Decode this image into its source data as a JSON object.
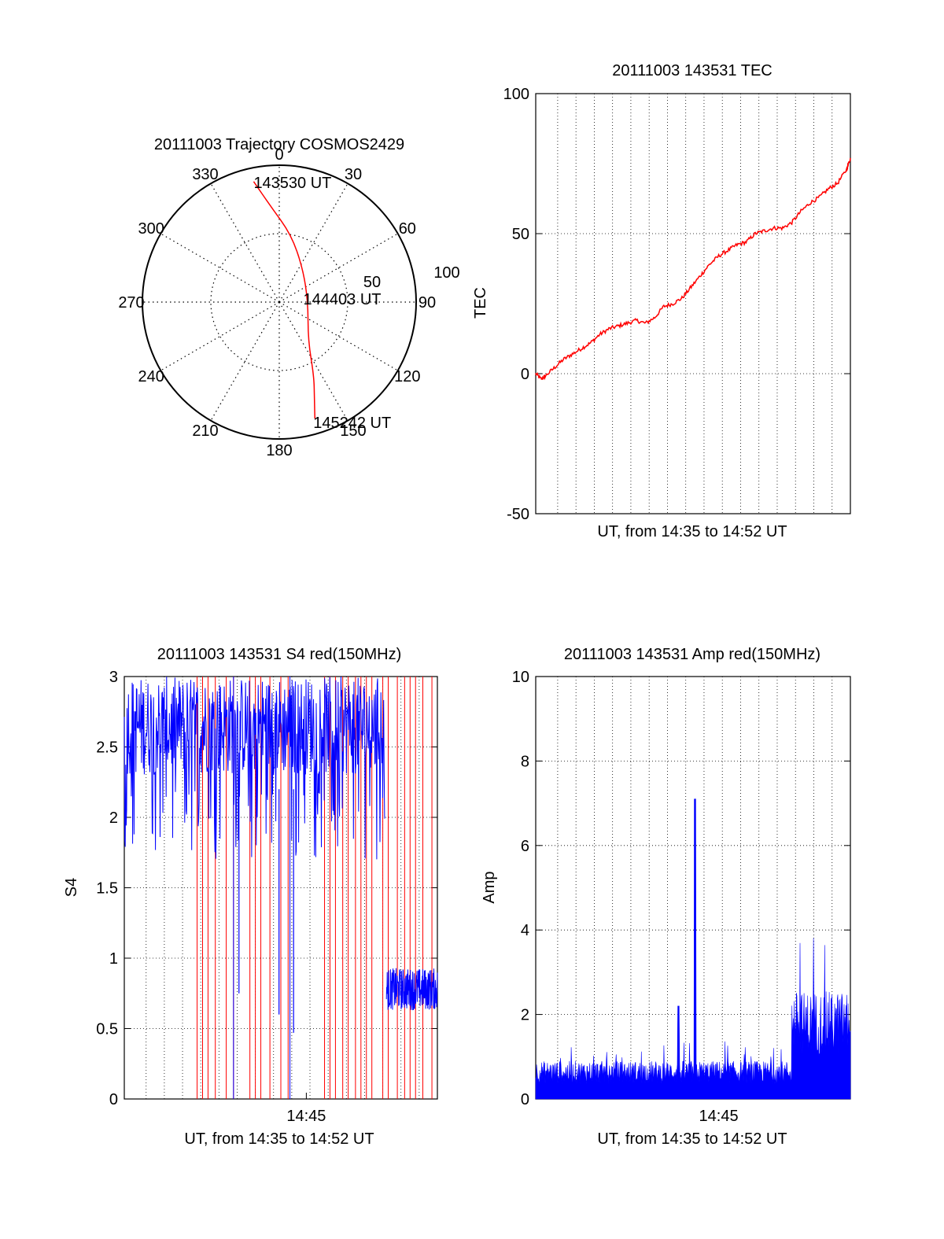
{
  "colors": {
    "red_trace": "#ff0000",
    "blue_trace": "#0000ff",
    "axis": "#000000",
    "grid": "#000000"
  },
  "chart_data": [
    {
      "type": "polar",
      "title": "20111003 Trajectory COSMOS2429",
      "azimuth_labels": [
        "0",
        "30",
        "60",
        "90",
        "120",
        "150",
        "180",
        "210",
        "240",
        "270",
        "300",
        "330"
      ],
      "radial_labels": [
        "50",
        "100"
      ],
      "radial_range": [
        0,
        100
      ],
      "grid": true,
      "trajectory": {
        "name": "",
        "points": [
          {
            "az": 348,
            "r": 90
          },
          {
            "az": 355,
            "r": 70
          },
          {
            "az": 10,
            "r": 50
          },
          {
            "az": 35,
            "r": 30
          },
          {
            "az": 90,
            "r": 21
          },
          {
            "az": 143,
            "r": 35
          },
          {
            "az": 155,
            "r": 60
          },
          {
            "az": 160,
            "r": 75
          },
          {
            "az": 163,
            "r": 89
          }
        ]
      },
      "time_labels": [
        {
          "text": "143530 UT",
          "az": 348,
          "r": 90
        },
        {
          "text": "144403 UT",
          "az": 90,
          "r": 21
        },
        {
          "text": "145242 UT",
          "az": 163,
          "r": 89
        }
      ]
    },
    {
      "type": "line",
      "title": "20111003 143531 TEC",
      "xlabel": "UT, from 14:35 to 14:52 UT",
      "ylabel": "TEC",
      "xlim": [
        0,
        17.2
      ],
      "ylim": [
        -50,
        100
      ],
      "y_ticks": [
        "100",
        "50",
        "0",
        "-50"
      ],
      "grid": true,
      "series": [
        {
          "name": "",
          "x": [
            0,
            0.3,
            0.5,
            1,
            1.5,
            2,
            2.5,
            3,
            3.5,
            4,
            4.5,
            5,
            5.5,
            6,
            6.5,
            7,
            7.5,
            8,
            8.5,
            9,
            9.5,
            10,
            10.5,
            11,
            11.5,
            12,
            12.5,
            13,
            13.5,
            14,
            14.5,
            15,
            15.5,
            16,
            16.5,
            17,
            17.2
          ],
          "values": [
            0,
            -2,
            -1,
            2,
            5,
            7,
            9,
            11,
            14,
            16,
            17,
            18,
            19,
            18,
            20,
            24,
            25,
            27,
            31,
            35,
            39,
            42,
            44,
            46,
            47,
            50,
            51,
            52,
            52,
            54,
            58,
            61,
            63,
            66,
            68,
            73,
            77
          ]
        }
      ]
    },
    {
      "type": "line",
      "title": "20111003 143531 S4 red(150MHz)",
      "xlabel": "UT, from 14:35 to 14:52 UT",
      "ylabel": "S4",
      "xlim": [
        0,
        17.2
      ],
      "ylim": [
        0,
        3
      ],
      "y_ticks": [
        "3",
        "2.5",
        "2",
        "1.5",
        "1",
        "0.5",
        "0"
      ],
      "x_ticks": [
        {
          "x": 10,
          "label": "14:45"
        }
      ],
      "grid": true,
      "series": [
        {
          "name": "",
          "color": "red",
          "note_none": ""
        },
        {
          "name": "",
          "color": "blue"
        }
      ],
      "description_levels": {
        "blue_dip_positions": [
          6.3,
          8.5,
          9.3
        ],
        "blue_dip_values": [
          0.75,
          0.6,
          0.47
        ],
        "blue_tail_range": [
          14.4,
          17.2
        ],
        "blue_tail_mean": 0.78
      }
    },
    {
      "type": "line",
      "title": "20111003 143531 Amp red(150MHz)",
      "xlabel": "UT, from 14:35 to 14:52 UT",
      "ylabel": "Amp",
      "xlim": [
        0,
        17.2
      ],
      "ylim": [
        0,
        10
      ],
      "y_ticks": [
        "10",
        "8",
        "6",
        "4",
        "2",
        "0"
      ],
      "x_ticks": [
        {
          "x": 10,
          "label": "14:45"
        }
      ],
      "grid": true,
      "series": [
        {
          "name": "",
          "color": "blue"
        }
      ],
      "features": {
        "baseline_level": 0.6,
        "spike_x": 8.7,
        "spike_value": 7.1,
        "secondary_spike_x": 7.8,
        "secondary_spike_value": 2.2,
        "step_start_x": 14.0,
        "step_level": 1.7
      }
    }
  ]
}
